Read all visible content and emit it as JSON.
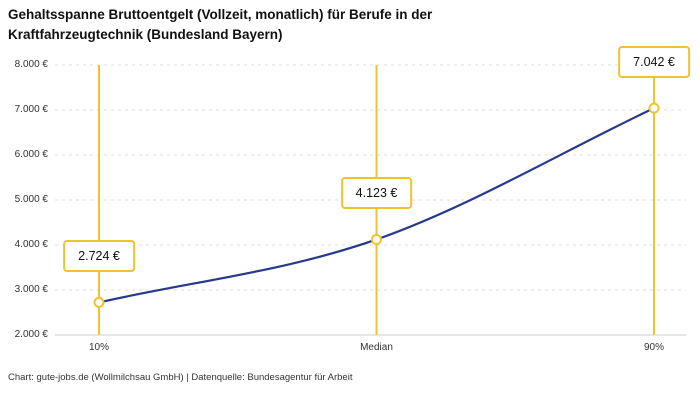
{
  "header": {
    "title_line1": "Gehaltsspanne Bruttoentgelt (Vollzeit, monatlich) für Berufe in der",
    "title_line2": "Kraftfahrzeugtechnik (Bundesland Bayern)"
  },
  "footer": {
    "text": "Chart: gute-jobs.de (Wollmilchsau GmbH) | Datenquelle: Bundesagentur für Arbeit"
  },
  "chart_data": {
    "type": "line",
    "title": "Gehaltsspanne Bruttoentgelt (Vollzeit, monatlich) für Berufe in der Kraftfahrzeugtechnik (Bundesland Bayern)",
    "categories": [
      "10%",
      "Median",
      "90%"
    ],
    "values": [
      2724,
      4123,
      7042
    ],
    "value_labels": [
      "2.724 €",
      "4.123 €",
      "7.042 €"
    ],
    "ylim": [
      2000,
      8000
    ],
    "yticks": [
      2000,
      3000,
      4000,
      5000,
      6000,
      7000,
      8000
    ],
    "ytick_labels": [
      "2.000 €",
      "3.000 €",
      "4.000 €",
      "5.000 €",
      "6.000 €",
      "7.000 €",
      "8.000 €"
    ],
    "grid": "horizontal-dashed",
    "legend": "none",
    "colors": {
      "line": "#27398b",
      "accent": "#f0c32e",
      "grid": "#dedede",
      "axis_line": "#cccccc",
      "axis_text": "#333333",
      "title_text": "#111111"
    }
  }
}
